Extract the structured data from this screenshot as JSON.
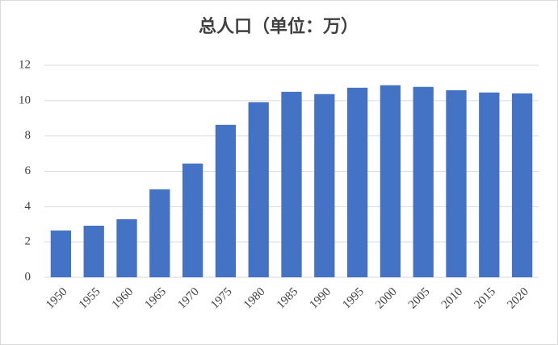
{
  "chart_data": {
    "type": "bar",
    "title": "总人口（单位：万）",
    "categories": [
      "1950",
      "1955",
      "1960",
      "1965",
      "1970",
      "1975",
      "1980",
      "1985",
      "1990",
      "1995",
      "2000",
      "2005",
      "2010",
      "2015",
      "2020"
    ],
    "values": [
      2.65,
      2.92,
      3.29,
      4.98,
      6.44,
      8.63,
      9.91,
      10.5,
      10.37,
      10.73,
      10.87,
      10.78,
      10.59,
      10.46,
      10.41
    ],
    "color": "#4472c4",
    "ylim": [
      0,
      12
    ],
    "yticks": [
      0,
      2,
      4,
      6,
      8,
      10,
      12
    ],
    "grid": true
  }
}
